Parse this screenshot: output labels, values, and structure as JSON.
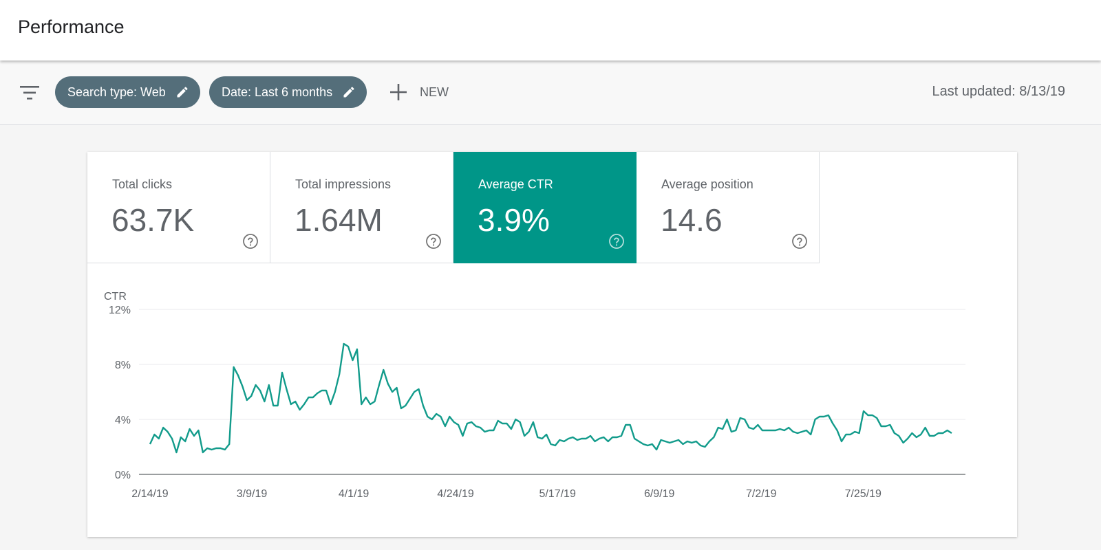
{
  "header": {
    "title": "Performance"
  },
  "toolbar": {
    "filter_icon": "filter-list-icon",
    "chips": [
      {
        "label": "Search type: Web",
        "icon": "pencil-icon"
      },
      {
        "label": "Date: Last 6 months",
        "icon": "pencil-icon"
      }
    ],
    "new_label": "NEW",
    "new_icon": "plus-icon",
    "last_updated": "Last updated: 8/13/19"
  },
  "metrics": [
    {
      "label": "Total clicks",
      "value": "63.7K",
      "active": false
    },
    {
      "label": "Total impressions",
      "value": "1.64M",
      "active": false
    },
    {
      "label": "Average CTR",
      "value": "3.9%",
      "active": true
    },
    {
      "label": "Average position",
      "value": "14.6",
      "active": false
    }
  ],
  "colors": {
    "accent": "#009688",
    "chip_bg": "#546e7a",
    "line": "#129b8b"
  },
  "chart_data": {
    "type": "line",
    "title": "",
    "ylabel": "CTR",
    "xlabel": "",
    "ylim": [
      0,
      12
    ],
    "y_ticks": [
      "0%",
      "4%",
      "8%",
      "12%"
    ],
    "x_tick_labels": [
      "2/14/19",
      "3/9/19",
      "4/1/19",
      "4/24/19",
      "5/17/19",
      "6/9/19",
      "7/2/19",
      "7/25/19"
    ],
    "x_range_days": [
      0,
      181
    ],
    "grid": true,
    "series": [
      {
        "name": "Average CTR",
        "values": [
          2.2,
          2.9,
          2.6,
          3.4,
          3.1,
          2.6,
          1.6,
          2.7,
          2.4,
          3.3,
          2.8,
          3.2,
          1.6,
          1.9,
          1.8,
          1.9,
          1.9,
          1.8,
          2.2,
          7.8,
          7.2,
          6.4,
          5.4,
          5.7,
          6.5,
          6.1,
          5.3,
          6.5,
          5.0,
          5.0,
          7.4,
          6.2,
          5.1,
          5.3,
          4.7,
          5.1,
          5.6,
          5.6,
          5.9,
          6.1,
          6.1,
          5.1,
          6.0,
          7.3,
          9.5,
          9.3,
          8.3,
          9.1,
          5.1,
          5.6,
          5.1,
          5.3,
          6.5,
          7.6,
          6.6,
          6.0,
          6.3,
          4.8,
          5.0,
          5.5,
          6.0,
          6.2,
          5.0,
          4.2,
          4.0,
          4.4,
          4.2,
          3.5,
          4.2,
          3.8,
          3.6,
          2.8,
          3.7,
          3.8,
          3.5,
          3.4,
          3.1,
          3.2,
          3.2,
          3.9,
          3.7,
          3.7,
          3.3,
          4.0,
          3.8,
          2.8,
          3.1,
          3.8,
          2.7,
          2.6,
          2.9,
          2.2,
          2.1,
          2.5,
          2.4,
          2.6,
          2.7,
          2.5,
          2.6,
          2.6,
          2.8,
          2.4,
          2.6,
          2.7,
          2.4,
          2.7,
          2.7,
          2.8,
          3.6,
          3.6,
          2.6,
          2.4,
          2.2,
          2.1,
          2.2,
          1.8,
          2.5,
          2.4,
          2.3,
          2.4,
          2.5,
          2.2,
          2.4,
          2.3,
          2.4,
          2.1,
          2.0,
          2.4,
          2.7,
          3.4,
          3.3,
          4.0,
          3.1,
          3.2,
          4.1,
          4.0,
          3.4,
          3.3,
          3.6,
          3.2,
          3.2,
          3.2,
          3.2,
          3.3,
          3.2,
          3.4,
          3.1,
          3.0,
          3.1,
          3.2,
          2.9,
          4.0,
          4.2,
          4.2,
          4.3,
          3.7,
          3.2,
          2.4,
          2.9,
          2.9,
          3.1,
          3.0,
          4.6,
          4.3,
          4.3,
          4.1,
          3.5,
          3.5,
          3.6,
          3.0,
          2.8,
          2.3,
          2.6,
          3.0,
          2.7,
          2.9,
          3.4,
          2.8,
          2.8,
          3.0,
          3.0,
          3.2,
          3.0
        ]
      }
    ]
  }
}
